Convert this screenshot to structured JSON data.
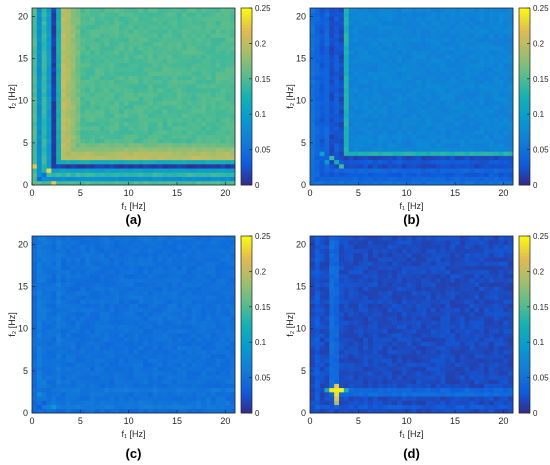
{
  "chart_data": [
    {
      "type": "heatmap",
      "panel_label": "(a)",
      "xlabel": "f₁ [Hz]",
      "ylabel": "f₂ [Hz]",
      "xlim": [
        0,
        21
      ],
      "ylim": [
        0,
        21
      ],
      "xticks": [
        0,
        5,
        10,
        15,
        20
      ],
      "yticks": [
        0,
        5,
        10,
        15,
        20
      ],
      "colorbar": {
        "min": 0,
        "max": 0.25,
        "ticks": [
          0,
          0.05,
          0.1,
          0.15,
          0.2,
          0.25
        ],
        "tick_labels": [
          "0",
          "0.05",
          "0.1",
          "0.15",
          "0.2",
          "0.25"
        ]
      },
      "colormap": "parula",
      "grid": false,
      "data": {
        "background": 0.15,
        "sym_bands": [
          {
            "from": 0.5,
            "to": 1.0,
            "value": 0.08
          },
          {
            "from": 1.0,
            "to": 1.5,
            "value": 0.14
          },
          {
            "from": 1.5,
            "to": 2.0,
            "value": 0.1
          },
          {
            "from": 2.0,
            "to": 2.5,
            "value": 0.01
          },
          {
            "from": 2.5,
            "to": 3.0,
            "value": 0.12
          },
          {
            "from": 3.0,
            "to": 3.5,
            "value": 0.2
          },
          {
            "from": 3.5,
            "to": 4.0,
            "value": 0.19
          },
          {
            "from": 4.0,
            "to": 4.5,
            "value": 0.18
          },
          {
            "from": 4.5,
            "to": 5.0,
            "value": 0.165
          }
        ],
        "hot_spots": [
          {
            "f1": 0.5,
            "f2": 0.5,
            "value": 0.04
          },
          {
            "f1": 1.0,
            "f2": 1.0,
            "value": 0.05
          },
          {
            "f1": 1.5,
            "f2": 1.5,
            "value": 0.24
          },
          {
            "f1": 0.0,
            "f2": 2.0,
            "value": 0.22
          },
          {
            "f1": 2.0,
            "f2": 0.0,
            "value": 0.22
          }
        ]
      }
    },
    {
      "type": "heatmap",
      "panel_label": "(b)",
      "xlabel": "f₁ [Hz]",
      "ylabel": "f₂ [Hz]",
      "xlim": [
        0,
        21
      ],
      "ylim": [
        0,
        21
      ],
      "xticks": [
        0,
        5,
        10,
        15,
        20
      ],
      "yticks": [
        0,
        5,
        10,
        15,
        20
      ],
      "colorbar": {
        "min": 0,
        "max": 0.25,
        "ticks": [
          0,
          0.05,
          0.1,
          0.15,
          0.2,
          0.25
        ],
        "tick_labels": [
          "0",
          "0.05",
          "0.1",
          "0.15",
          "0.2",
          "0.25"
        ]
      },
      "colormap": "parula",
      "grid": false,
      "data": {
        "background": 0.07,
        "sym_bands": [
          {
            "from": 0.0,
            "to": 0.5,
            "value": 0.05
          },
          {
            "from": 0.5,
            "to": 1.0,
            "value": 0.04
          },
          {
            "from": 1.0,
            "to": 1.5,
            "value": 0.03
          },
          {
            "from": 1.5,
            "to": 2.0,
            "value": 0.04
          },
          {
            "from": 2.0,
            "to": 2.5,
            "value": 0.02
          },
          {
            "from": 2.5,
            "to": 3.0,
            "value": 0.03
          },
          {
            "from": 3.0,
            "to": 3.5,
            "value": 0.02
          },
          {
            "from": 3.5,
            "to": 4.0,
            "value": 0.13
          }
        ],
        "hot_spots": [
          {
            "f1": 2.0,
            "f2": 3.0,
            "value": 0.14
          },
          {
            "f1": 3.0,
            "f2": 2.0,
            "value": 0.14
          },
          {
            "f1": 2.5,
            "f2": 2.5,
            "value": 0.12
          },
          {
            "f1": 1.5,
            "f2": 2.5,
            "value": 0.1
          },
          {
            "f1": 1.0,
            "f2": 3.5,
            "value": 0.11
          }
        ]
      }
    },
    {
      "type": "heatmap",
      "panel_label": "(c)",
      "xlabel": "f₁ [Hz]",
      "ylabel": "f₂ [Hz]",
      "xlim": [
        0,
        21
      ],
      "ylim": [
        0,
        21
      ],
      "xticks": [
        0,
        5,
        10,
        15,
        20
      ],
      "yticks": [
        0,
        5,
        10,
        15,
        20
      ],
      "colorbar": {
        "min": 0,
        "max": 0.25,
        "ticks": [
          0,
          0.05,
          0.1,
          0.15,
          0.2,
          0.25
        ],
        "tick_labels": [
          "0",
          "0.05",
          "0.1",
          "0.15",
          "0.2",
          "0.25"
        ]
      },
      "colormap": "parula",
      "grid": false,
      "data": {
        "background": 0.05,
        "sym_bands": [
          {
            "from": 0.0,
            "to": 0.5,
            "value": 0.045
          },
          {
            "from": 0.5,
            "to": 1.0,
            "value": 0.06
          },
          {
            "from": 1.0,
            "to": 1.5,
            "value": 0.055
          },
          {
            "from": 2.5,
            "to": 3.0,
            "value": 0.058
          }
        ],
        "hot_spots": [
          {
            "f1": 2.0,
            "f2": 0.5,
            "value": 0.09
          },
          {
            "f1": 0.5,
            "f2": 2.0,
            "value": 0.09
          },
          {
            "f1": 1.0,
            "f2": 1.0,
            "value": 0.03
          },
          {
            "f1": 0.5,
            "f2": 0.5,
            "value": 0.035
          }
        ]
      }
    },
    {
      "type": "heatmap",
      "panel_label": "(d)",
      "xlabel": "f₁ [Hz]",
      "ylabel": "f₂ [Hz]",
      "xlim": [
        0,
        21
      ],
      "ylim": [
        0,
        21
      ],
      "xticks": [
        0,
        5,
        10,
        15,
        20
      ],
      "yticks": [
        0,
        5,
        10,
        15,
        20
      ],
      "colorbar": {
        "min": 0,
        "max": 0.25,
        "ticks": [
          0,
          0.05,
          0.1,
          0.15,
          0.2,
          0.25
        ],
        "tick_labels": [
          "0",
          "0.05",
          "0.1",
          "0.15",
          "0.2",
          "0.25"
        ]
      },
      "colormap": "parula",
      "grid": false,
      "data": {
        "background": 0.02,
        "sym_bands": [
          {
            "from": 0.5,
            "to": 1.0,
            "value": 0.03
          },
          {
            "from": 2.0,
            "to": 2.5,
            "value": 0.045
          },
          {
            "from": 2.5,
            "to": 3.0,
            "value": 0.04
          }
        ],
        "hot_spots": [
          {
            "f1": 2.5,
            "f2": 2.5,
            "value": 0.25
          },
          {
            "f1": 2.0,
            "f2": 2.5,
            "value": 0.24
          },
          {
            "f1": 3.0,
            "f2": 2.5,
            "value": 0.24
          },
          {
            "f1": 2.5,
            "f2": 2.0,
            "value": 0.24
          },
          {
            "f1": 2.5,
            "f2": 1.5,
            "value": 0.22
          },
          {
            "f1": 2.5,
            "f2": 1.0,
            "value": 0.2
          },
          {
            "f1": 2.5,
            "f2": 3.0,
            "value": 0.23
          },
          {
            "f1": 1.5,
            "f2": 2.5,
            "value": 0.12
          },
          {
            "f1": 3.5,
            "f2": 2.5,
            "value": 0.12
          },
          {
            "f1": 0.5,
            "f2": 0.5,
            "value": 0.04
          }
        ]
      }
    }
  ]
}
